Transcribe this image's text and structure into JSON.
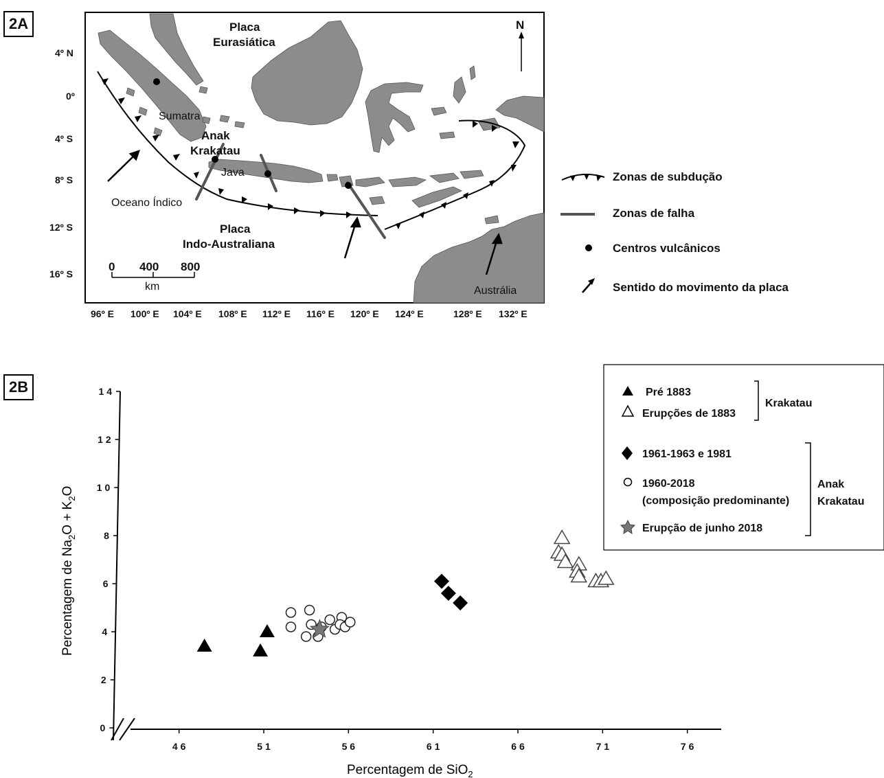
{
  "panel_a": {
    "tag": "2A",
    "north": "N",
    "lat_labels": [
      "4º N",
      "0º",
      "4º S",
      "8º S",
      "12º S",
      "16º S"
    ],
    "lon_labels": [
      "96º E",
      "100º E",
      "104º E",
      "108º E",
      "112º E",
      "116º E",
      "120º E",
      "124º E",
      "128º E",
      "132º E"
    ],
    "place_labels": {
      "eurasian_plate_1": "Placa",
      "eurasian_plate_2": "Eurasiática",
      "indo_plate_1": "Placa",
      "indo_plate_2": "Indo-Australiana",
      "sumatra": "Sumatra",
      "anak_1": "Anak",
      "anak_2": "Krakatau",
      "java": "Java",
      "ocean": "Oceano Índico",
      "australia": "Austrália"
    },
    "scale": {
      "ticks": [
        "0",
        "400",
        "800"
      ],
      "unit": "km"
    },
    "legend": [
      {
        "symbol": "subduction",
        "label": "Zonas de subdução"
      },
      {
        "symbol": "fault",
        "label": "Zonas de falha"
      },
      {
        "symbol": "volcano",
        "label": "Centros vulcânicos"
      },
      {
        "symbol": "arrow",
        "label": "Sentido do movimento da placa"
      }
    ],
    "colors": {
      "land": "#8c8c8c",
      "ocean": "#ffffff",
      "fault": "#555555"
    }
  },
  "panel_b": {
    "tag": "2B",
    "chart_data": {
      "type": "scatter",
      "xlabel_main": "Percentagem de SiO",
      "xlabel_sub": "2",
      "ylabel_parts": [
        "Percentagem de Na",
        "2",
        "O + K",
        "2",
        "O"
      ],
      "xlim": [
        42,
        78
      ],
      "ylim": [
        0,
        14
      ],
      "x_ticks": [
        46,
        51,
        56,
        61,
        66,
        71,
        76
      ],
      "x_tick_labels": [
        "4 6",
        "5 1",
        "5 6",
        "6 1",
        "6 6",
        "7 1",
        "7 6"
      ],
      "y_ticks": [
        0,
        2,
        4,
        6,
        8,
        10,
        12,
        14
      ],
      "y_tick_labels": [
        "0",
        "2",
        "4",
        "6",
        "8",
        "1 0",
        "1 2",
        "1 4"
      ],
      "series": [
        {
          "name": "Pré 1883",
          "marker": "triangle-filled",
          "points": [
            [
              47.5,
              3.4
            ],
            [
              50.8,
              3.2
            ],
            [
              51.2,
              4.0
            ]
          ]
        },
        {
          "name": "Erupções de 1883",
          "marker": "triangle-open",
          "points": [
            [
              68.6,
              7.9
            ],
            [
              68.4,
              7.3
            ],
            [
              68.6,
              7.2
            ],
            [
              68.8,
              6.9
            ],
            [
              69.6,
              6.8
            ],
            [
              69.5,
              6.5
            ],
            [
              69.6,
              6.3
            ],
            [
              70.6,
              6.1
            ],
            [
              70.9,
              6.1
            ],
            [
              71.2,
              6.2
            ]
          ]
        },
        {
          "name": "1961-1963 e 1981",
          "marker": "diamond-filled",
          "points": [
            [
              61.5,
              6.1
            ],
            [
              61.9,
              5.6
            ],
            [
              62.6,
              5.2
            ]
          ]
        },
        {
          "name": "1960-2018 (composição predominante)",
          "marker": "circle-open",
          "points": [
            [
              52.6,
              4.8
            ],
            [
              52.6,
              4.2
            ],
            [
              53.7,
              4.9
            ],
            [
              53.5,
              3.8
            ],
            [
              53.8,
              4.3
            ],
            [
              54.2,
              3.8
            ],
            [
              54.4,
              4.2
            ],
            [
              54.9,
              4.5
            ],
            [
              55.2,
              4.1
            ],
            [
              55.6,
              4.6
            ],
            [
              55.5,
              4.3
            ],
            [
              55.8,
              4.2
            ],
            [
              56.1,
              4.4
            ]
          ]
        },
        {
          "name": "Erupção de junho 2018",
          "marker": "star",
          "points": [
            [
              54.3,
              4.1
            ]
          ]
        }
      ],
      "legend_groups": [
        {
          "label": "Krakatau",
          "entries": [
            "Pré 1883",
            "Erupções de 1883"
          ]
        },
        {
          "label_1": "Anak",
          "label_2": "Krakatau",
          "entries": [
            "1961-1963 e 1981",
            "1960-2018",
            "(composição predominante)",
            "Erupção de  junho 2018"
          ]
        }
      ]
    },
    "legend_text": {
      "e1": "Pré 1883",
      "e2": "Erupções de 1883",
      "g1": "Krakatau",
      "e3": "1961-1963 e 1981",
      "e4a": "1960-2018",
      "e4b": "(composição predominante)",
      "e5": "Erupção de  junho 2018",
      "g2a": "Anak",
      "g2b": "Krakatau"
    }
  }
}
